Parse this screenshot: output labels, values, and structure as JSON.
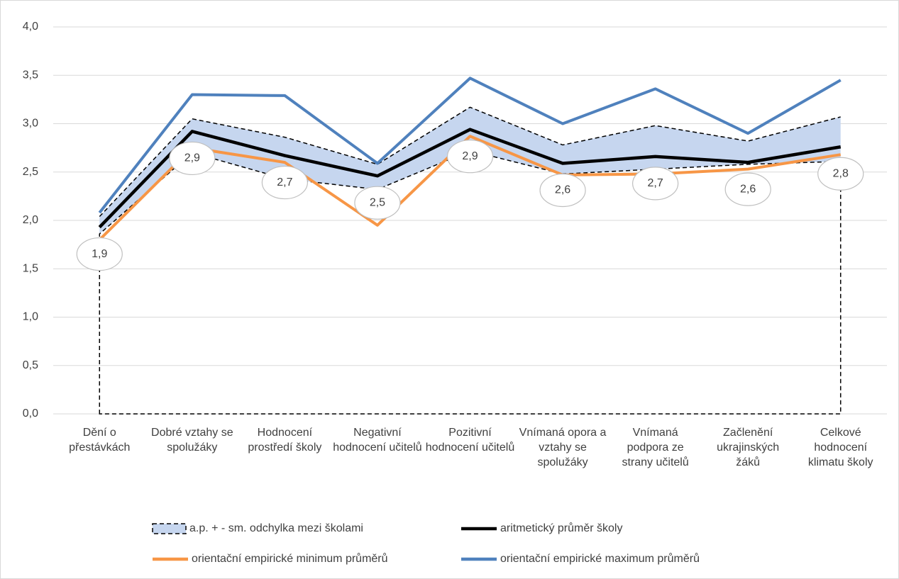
{
  "chart_data": {
    "type": "line",
    "categories": [
      "Dění o přestávkách",
      "Dobré vztahy se spolužáky",
      "Hodnocení prostředí školy",
      "Negativní hodnocení učitelů",
      "Pozitivní hodnocení učitelů",
      "Vnímaná opora a vztahy se spolužáky",
      "Vnímaná podpora ze strany učitelů",
      "Začlenění ukrajinských žáků",
      "Celkové hodnocení klimatu školy"
    ],
    "band": {
      "name": "a.p. + - sm. odchylka mezi školami",
      "color": "#c6d6ef",
      "upper": [
        2.04,
        3.05,
        2.86,
        2.58,
        3.17,
        2.78,
        2.98,
        2.82,
        3.07
      ],
      "lower": [
        1.86,
        2.7,
        2.43,
        2.32,
        2.72,
        2.48,
        2.53,
        2.58,
        2.61
      ]
    },
    "series": [
      {
        "name": "aritmetický průměr školy",
        "color": "#000000",
        "values": [
          1.93,
          2.92,
          2.67,
          2.46,
          2.94,
          2.59,
          2.66,
          2.6,
          2.76
        ],
        "value_labels": [
          "1,9",
          "2,9",
          "2,7",
          "2,5",
          "2,9",
          "2,6",
          "2,7",
          "2,6",
          "2,8"
        ]
      },
      {
        "name": "orientační empirické minimum průměrů",
        "color": "#f79646",
        "values": [
          1.8,
          2.75,
          2.6,
          1.95,
          2.87,
          2.47,
          2.48,
          2.53,
          2.68
        ]
      },
      {
        "name": "orientační empirické maximum průměrů",
        "color": "#4f81bd",
        "values": [
          2.08,
          3.3,
          3.29,
          2.59,
          3.47,
          3.0,
          3.36,
          2.9,
          3.45
        ]
      }
    ],
    "ylim": [
      0,
      4
    ],
    "yticks": [
      {
        "value": 0,
        "label": "0,0"
      },
      {
        "value": 0.5,
        "label": "0,5"
      },
      {
        "value": 1,
        "label": "1,0"
      },
      {
        "value": 1.5,
        "label": "1,5"
      },
      {
        "value": 2,
        "label": "2,0"
      },
      {
        "value": 2.5,
        "label": "2,5"
      },
      {
        "value": 3,
        "label": "3,0"
      },
      {
        "value": 3.5,
        "label": "3,5"
      },
      {
        "value": 4,
        "label": "4,0"
      }
    ],
    "grid": true
  }
}
